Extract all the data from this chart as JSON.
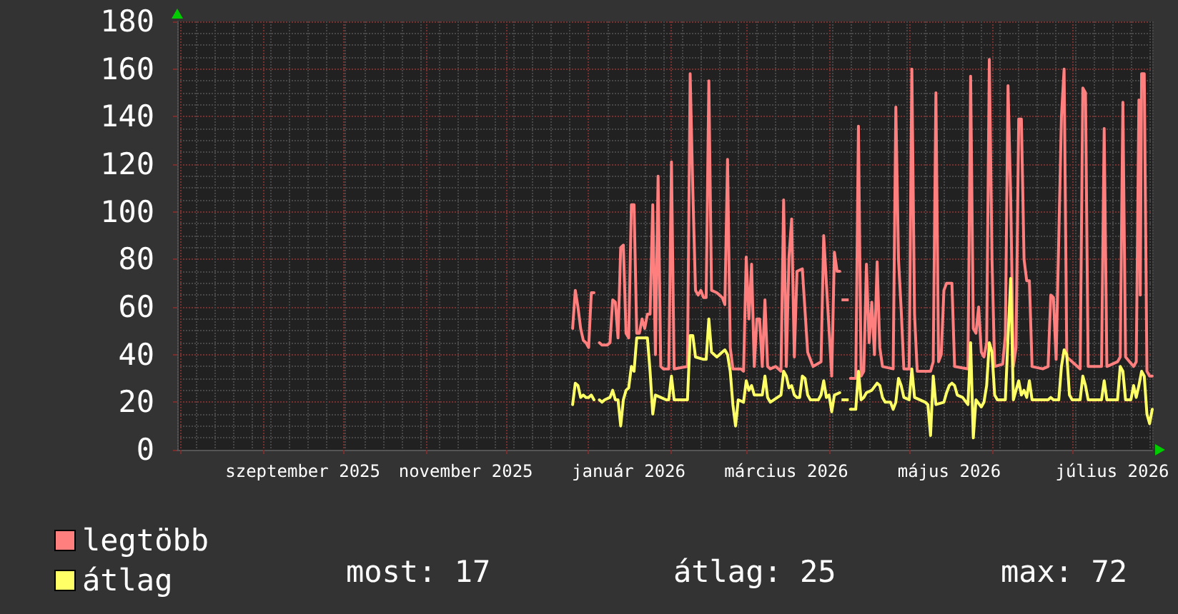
{
  "chart_data": {
    "type": "line",
    "xlim": [
      "2025-07-31",
      "2026-07-31"
    ],
    "xticks": [
      {
        "value": "2025-08-01",
        "label": null
      },
      {
        "value": "2025-09-01",
        "label": null
      },
      {
        "value": "2025-09-16",
        "label": "szeptember 2025"
      },
      {
        "value": "2025-10-01",
        "label": null
      },
      {
        "value": "2025-11-01",
        "label": null
      },
      {
        "value": "2025-11-16",
        "label": "november 2025"
      },
      {
        "value": "2025-12-01",
        "label": null
      },
      {
        "value": "2026-01-01",
        "label": null
      },
      {
        "value": "2026-01-16",
        "label": "január 2026"
      },
      {
        "value": "2026-02-01",
        "label": null
      },
      {
        "value": "2026-03-01",
        "label": null
      },
      {
        "value": "2026-03-16",
        "label": "március 2026"
      },
      {
        "value": "2026-04-01",
        "label": null
      },
      {
        "value": "2026-05-01",
        "label": null
      },
      {
        "value": "2026-05-16",
        "label": "május 2026"
      },
      {
        "value": "2026-06-01",
        "label": null
      },
      {
        "value": "2026-07-01",
        "label": null
      },
      {
        "value": "2026-07-16",
        "label": "július 2026"
      }
    ],
    "ylim": [
      0,
      180
    ],
    "yticks": [
      0,
      20,
      40,
      60,
      80,
      100,
      120,
      140,
      160,
      180
    ],
    "grid": true,
    "legend": "bottom left",
    "marker": "none",
    "series": [
      {
        "name": "legtöbb",
        "color": "#ff7f7f",
        "x": [
          "2025-12-26",
          "2025-12-27",
          "2025-12-28",
          "2025-12-29",
          "2025-12-30",
          "2025-12-31",
          "2026-01-01",
          "2026-01-02",
          "2026-01-03",
          "2026-01-04",
          "2026-01-05",
          "2026-01-06",
          "2026-01-08",
          "2026-01-09",
          "2026-01-10",
          "2026-01-11",
          "2026-01-12",
          "2026-01-13",
          "2026-01-14",
          "2026-01-15",
          "2026-01-16",
          "2026-01-17",
          "2026-01-18",
          "2026-01-19",
          "2026-01-20",
          "2026-01-21",
          "2026-01-22",
          "2026-01-23",
          "2026-01-24",
          "2026-01-25",
          "2026-01-26",
          "2026-01-27",
          "2026-01-28",
          "2026-01-29",
          "2026-01-31",
          "2026-02-01",
          "2026-02-02",
          "2026-02-07",
          "2026-02-08",
          "2026-02-09",
          "2026-02-10",
          "2026-02-11",
          "2026-02-12",
          "2026-02-13",
          "2026-02-14",
          "2026-02-15",
          "2026-02-16",
          "2026-02-18",
          "2026-02-20",
          "2026-02-21",
          "2026-02-22",
          "2026-02-23",
          "2026-02-24",
          "2026-02-27",
          "2026-02-28",
          "2026-03-01",
          "2026-03-02",
          "2026-03-03",
          "2026-03-04",
          "2026-03-05",
          "2026-03-06",
          "2026-03-07",
          "2026-03-08",
          "2026-03-09",
          "2026-03-10",
          "2026-03-12",
          "2026-03-14",
          "2026-03-15",
          "2026-03-16",
          "2026-03-17",
          "2026-03-18",
          "2026-03-19",
          "2026-03-20",
          "2026-03-22",
          "2026-03-24",
          "2026-03-26",
          "2026-03-29",
          "2026-03-30",
          "2026-03-31",
          "2026-04-02",
          "2026-04-03",
          "2026-04-04",
          "2026-04-05",
          "2026-04-06",
          "2026-04-07",
          "2026-04-08",
          "2026-04-09",
          "2026-04-10",
          "2026-04-11",
          "2026-04-12",
          "2026-04-13",
          "2026-04-14",
          "2026-04-15",
          "2026-04-16",
          "2026-04-17",
          "2026-04-18",
          "2026-04-19",
          "2026-04-20",
          "2026-04-21",
          "2026-04-25",
          "2026-04-26",
          "2026-04-27",
          "2026-04-28",
          "2026-04-29",
          "2026-05-01",
          "2026-05-02",
          "2026-05-03",
          "2026-05-04",
          "2026-05-09",
          "2026-05-10",
          "2026-05-11",
          "2026-05-12",
          "2026-05-13",
          "2026-05-14",
          "2026-05-15",
          "2026-05-17",
          "2026-05-18",
          "2026-05-23",
          "2026-05-24",
          "2026-05-25",
          "2026-05-26",
          "2026-05-27",
          "2026-05-28",
          "2026-05-29",
          "2026-05-30",
          "2026-05-31",
          "2026-06-01",
          "2026-06-02",
          "2026-06-05",
          "2026-06-06",
          "2026-06-07",
          "2026-06-08",
          "2026-06-09",
          "2026-06-10",
          "2026-06-11",
          "2026-06-12",
          "2026-06-13",
          "2026-06-14",
          "2026-06-15",
          "2026-06-16",
          "2026-06-20",
          "2026-06-22",
          "2026-06-23",
          "2026-06-24",
          "2026-06-25",
          "2026-06-27",
          "2026-06-28",
          "2026-06-29",
          "2026-07-04",
          "2026-07-05",
          "2026-07-06",
          "2026-07-07",
          "2026-07-12",
          "2026-07-13",
          "2026-07-14",
          "2026-07-18",
          "2026-07-19",
          "2026-07-20",
          "2026-07-21",
          "2026-07-24",
          "2026-07-25",
          "2026-07-26",
          "2026-07-26T12:00",
          "2026-07-27",
          "2026-07-28",
          "2026-07-29",
          "2026-07-30",
          "2026-07-31"
        ],
        "values": [
          51,
          67,
          60,
          51,
          46,
          45,
          43,
          66,
          66,
          null,
          45,
          44,
          44,
          45,
          63,
          62,
          47,
          85,
          86,
          49,
          47,
          103,
          103,
          49,
          49,
          55,
          51,
          57,
          57,
          103,
          40,
          115,
          35,
          34,
          34,
          121,
          34,
          35,
          158,
          109,
          67,
          65,
          67,
          64,
          64,
          155,
          67,
          66,
          64,
          61,
          122,
          43,
          34,
          34,
          33,
          81,
          55,
          78,
          35,
          55,
          55,
          35,
          63,
          35,
          34,
          35,
          33,
          105,
          35,
          81,
          97,
          39,
          75,
          76,
          41,
          35,
          37,
          90,
          70,
          31,
          83,
          75,
          75,
          null,
          63,
          null,
          30,
          30,
          30,
          136,
          31,
          33,
          78,
          45,
          62,
          40,
          79,
          43,
          35,
          34,
          144,
          80,
          59,
          34,
          34,
          160,
          57,
          33,
          33,
          37,
          150,
          37,
          40,
          67,
          70,
          70,
          35,
          34,
          157,
          51,
          49,
          60,
          41,
          39,
          45,
          164,
          80,
          35,
          36,
          48,
          153,
          106,
          35,
          43,
          139,
          139,
          80,
          71,
          71,
          35,
          34,
          35,
          65,
          64,
          38,
          140,
          160,
          39,
          34,
          152,
          150,
          35,
          35,
          135,
          35,
          37,
          39,
          146,
          39,
          35,
          37,
          147,
          65,
          158,
          158,
          33,
          31,
          31
        ]
      },
      {
        "name": "átlag",
        "color": "#ffff66",
        "x": [
          "2025-12-26",
          "2025-12-27",
          "2025-12-28",
          "2025-12-29",
          "2025-12-30",
          "2025-12-31",
          "2026-01-01",
          "2026-01-02",
          "2026-01-03",
          "2026-01-04",
          "2026-01-05",
          "2026-01-06",
          "2026-01-07",
          "2026-01-09",
          "2026-01-10",
          "2026-01-11",
          "2026-01-12",
          "2026-01-13",
          "2026-01-14",
          "2026-01-15",
          "2026-01-16",
          "2026-01-17",
          "2026-01-18",
          "2026-01-19",
          "2026-01-23",
          "2026-01-24",
          "2026-01-25",
          "2026-01-26",
          "2026-01-28",
          "2026-01-30",
          "2026-01-31",
          "2026-02-01",
          "2026-02-02",
          "2026-02-07",
          "2026-02-08",
          "2026-02-09",
          "2026-02-10",
          "2026-02-13",
          "2026-02-14",
          "2026-02-15",
          "2026-02-16",
          "2026-02-18",
          "2026-02-20",
          "2026-02-21",
          "2026-02-22",
          "2026-02-23",
          "2026-02-24",
          "2026-02-25",
          "2026-02-26",
          "2026-02-28",
          "2026-03-01",
          "2026-03-02",
          "2026-03-03",
          "2026-03-04",
          "2026-03-06",
          "2026-03-07",
          "2026-03-08",
          "2026-03-09",
          "2026-03-10",
          "2026-03-14",
          "2026-03-15",
          "2026-03-16",
          "2026-03-17",
          "2026-03-18",
          "2026-03-19",
          "2026-03-20",
          "2026-03-21",
          "2026-03-22",
          "2026-03-23",
          "2026-03-24",
          "2026-03-25",
          "2026-03-28",
          "2026-03-29",
          "2026-03-30",
          "2026-03-31",
          "2026-04-01",
          "2026-04-02",
          "2026-04-03",
          "2026-04-05",
          "2026-04-06",
          "2026-04-07",
          "2026-04-08",
          "2026-04-09",
          "2026-04-10",
          "2026-04-11",
          "2026-04-12",
          "2026-04-13",
          "2026-04-14",
          "2026-04-15",
          "2026-04-17",
          "2026-04-19",
          "2026-04-20",
          "2026-04-21",
          "2026-04-22",
          "2026-04-24",
          "2026-04-25",
          "2026-04-26",
          "2026-04-27",
          "2026-04-28",
          "2026-04-29",
          "2026-05-01",
          "2026-05-02",
          "2026-05-03",
          "2026-05-07",
          "2026-05-08",
          "2026-05-09",
          "2026-05-10",
          "2026-05-11",
          "2026-05-14",
          "2026-05-15",
          "2026-05-16",
          "2026-05-17",
          "2026-05-18",
          "2026-05-19",
          "2026-05-21",
          "2026-05-23",
          "2026-05-24",
          "2026-05-25",
          "2026-05-26",
          "2026-05-28",
          "2026-05-29",
          "2026-05-30",
          "2026-05-31",
          "2026-06-01",
          "2026-06-02",
          "2026-06-03",
          "2026-06-06",
          "2026-06-07",
          "2026-06-08",
          "2026-06-09",
          "2026-06-11",
          "2026-06-12",
          "2026-06-13",
          "2026-06-14",
          "2026-06-15",
          "2026-06-16",
          "2026-06-22",
          "2026-06-23",
          "2026-06-24",
          "2026-06-26",
          "2026-06-27",
          "2026-06-28",
          "2026-06-29",
          "2026-06-30",
          "2026-07-01",
          "2026-07-04",
          "2026-07-05",
          "2026-07-06",
          "2026-07-07",
          "2026-07-12",
          "2026-07-13",
          "2026-07-14",
          "2026-07-18",
          "2026-07-19",
          "2026-07-20",
          "2026-07-21",
          "2026-07-23",
          "2026-07-24",
          "2026-07-25",
          "2026-07-26",
          "2026-07-27",
          "2026-07-28",
          "2026-07-29",
          "2026-07-30",
          "2026-07-31"
        ],
        "values": [
          19,
          28,
          27,
          22,
          23,
          22,
          22,
          23,
          21,
          null,
          21,
          20,
          21,
          22,
          25,
          21,
          21,
          10,
          21,
          25,
          26,
          35,
          33,
          47,
          47,
          33,
          15,
          23,
          22,
          21,
          21,
          31,
          21,
          21,
          48,
          48,
          39,
          38,
          38,
          55,
          41,
          39,
          41,
          42,
          40,
          33,
          19,
          10,
          21,
          20,
          29,
          25,
          27,
          23,
          23,
          23,
          31,
          22,
          20,
          23,
          33,
          31,
          26,
          27,
          23,
          22,
          22,
          31,
          30,
          23,
          21,
          21,
          23,
          29,
          22,
          23,
          16,
          23,
          24,
          null,
          21,
          null,
          17,
          17,
          17,
          33,
          21,
          22,
          24,
          25,
          28,
          27,
          22,
          20,
          20,
          17,
          20,
          30,
          27,
          22,
          21,
          34,
          22,
          20,
          19,
          6,
          31,
          19,
          20,
          24,
          27,
          28,
          27,
          23,
          22,
          19,
          45,
          5,
          21,
          18,
          20,
          27,
          45,
          41,
          23,
          21,
          21,
          47,
          72,
          21,
          29,
          23,
          25,
          22,
          29,
          21,
          21,
          22,
          21,
          21,
          35,
          42,
          40,
          23,
          21,
          21,
          31,
          27,
          21,
          21,
          29,
          21,
          21,
          35,
          33,
          21,
          21,
          27,
          22,
          27,
          33,
          31,
          15,
          11,
          17
        ]
      }
    ],
    "annotations": [
      "most: 17",
      "átlag: 25",
      "max: 72"
    ]
  }
}
